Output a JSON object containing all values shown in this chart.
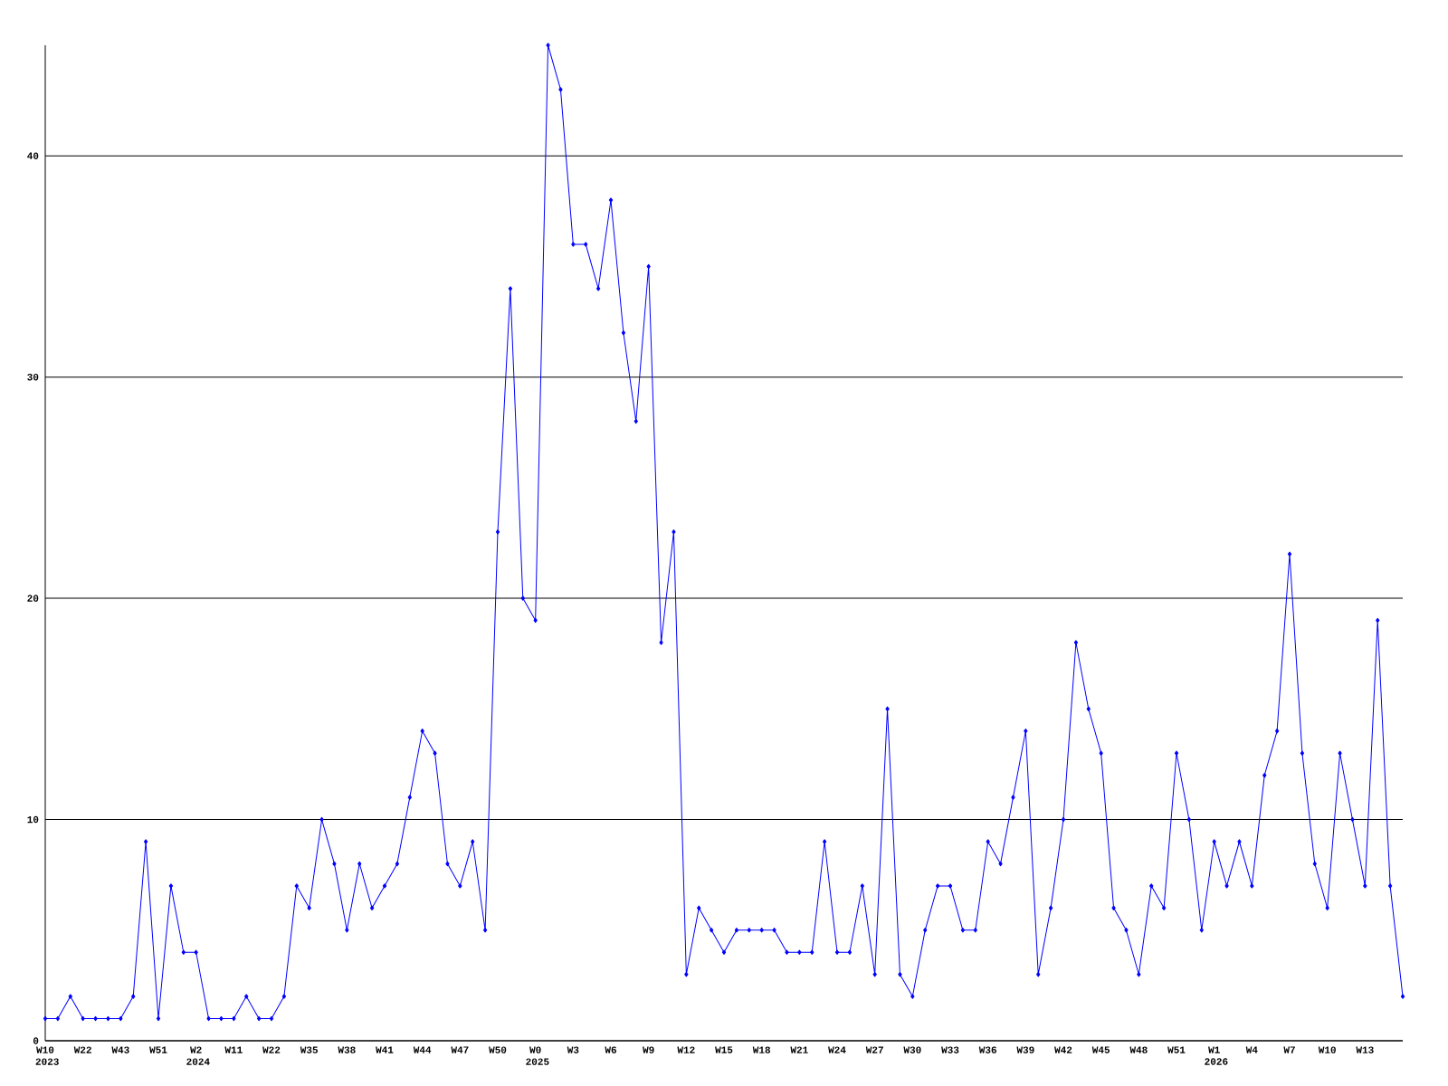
{
  "chart_data": {
    "type": "line",
    "categories": [
      "W10 2023",
      null,
      null,
      "W22",
      null,
      null,
      "W43",
      null,
      null,
      "W51",
      null,
      null,
      "W2 2024",
      null,
      null,
      "W11",
      null,
      null,
      "W22",
      null,
      null,
      "W35",
      null,
      null,
      "W38",
      null,
      null,
      "W41",
      null,
      null,
      "W44",
      null,
      null,
      "W47",
      null,
      null,
      "W50",
      null,
      null,
      "W0 2025",
      null,
      null,
      "W3",
      null,
      null,
      "W6",
      null,
      null,
      "W9",
      null,
      null,
      "W12",
      null,
      null,
      "W15",
      null,
      null,
      "W18",
      null,
      null,
      "W21",
      null,
      null,
      "W24",
      null,
      null,
      "W27",
      null,
      null,
      "W30",
      null,
      null,
      "W33",
      null,
      null,
      "W36",
      null,
      null,
      "W39",
      null,
      null,
      "W42",
      null,
      null,
      "W45",
      null,
      null,
      "W48",
      null,
      null,
      "W51",
      null,
      null,
      "W1 2026",
      null,
      null,
      "W4",
      null,
      null,
      "W7",
      null,
      null,
      "W10",
      null,
      null,
      "W13",
      null,
      null,
      null
    ],
    "values": [
      1,
      1,
      2,
      1,
      1,
      1,
      1,
      2,
      9,
      1,
      7,
      4,
      4,
      1,
      1,
      1,
      2,
      1,
      1,
      2,
      7,
      6,
      10,
      8,
      5,
      8,
      6,
      7,
      8,
      11,
      14,
      13,
      8,
      7,
      9,
      5,
      23,
      34,
      20,
      19,
      45,
      43,
      36,
      36,
      34,
      38,
      32,
      28,
      35,
      18,
      23,
      3,
      6,
      5,
      4,
      5,
      5,
      5,
      5,
      4,
      4,
      4,
      9,
      4,
      4,
      7,
      3,
      15,
      3,
      2,
      5,
      7,
      7,
      5,
      5,
      9,
      8,
      11,
      14,
      3,
      6,
      10,
      18,
      15,
      13,
      6,
      5,
      3,
      7,
      6,
      13,
      10,
      5,
      9,
      7,
      9,
      7,
      12,
      14,
      22,
      13,
      8,
      6,
      13,
      10,
      7,
      19,
      7,
      2
    ],
    "color": "#0000ff",
    "marker": "diamond",
    "ylim": [
      0,
      45
    ],
    "yticks": [
      0,
      10,
      20,
      30,
      40
    ],
    "grid": "y"
  }
}
